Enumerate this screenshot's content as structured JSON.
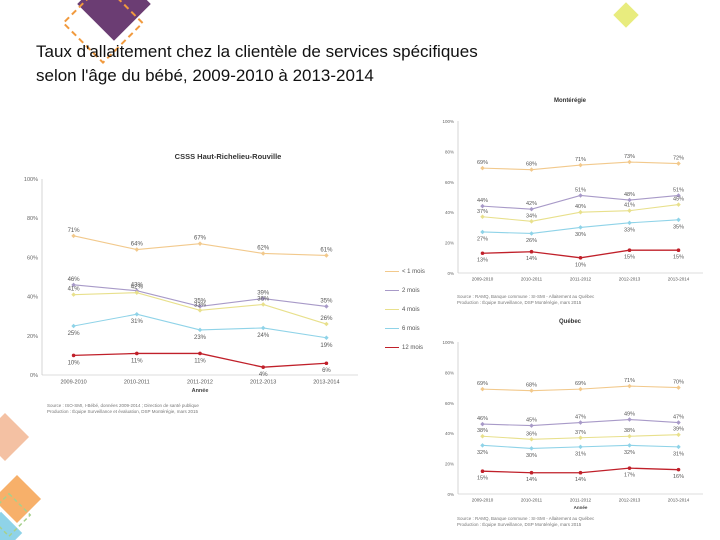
{
  "slide": {
    "title_line1": "Taux d'allaitement chez la clientèle de services spécifiques",
    "title_line2": "selon l'âge du bébé, 2009-2010 à 2013-2014"
  },
  "colors": {
    "accent_purple": "#6b3d73",
    "accent_orange": "#f19a3e",
    "accent_yellow": "#e8ec7e",
    "accent_pink": "#f4a3a8",
    "accent_blue": "#7ec8e3"
  },
  "legend": {
    "items": [
      {
        "label": "< 1 mois",
        "color": "#f2c98c"
      },
      {
        "label": "2 mois",
        "color": "#a89ac8"
      },
      {
        "label": "4 mois",
        "color": "#e8e08c"
      },
      {
        "label": "6 mois",
        "color": "#8fd3e8"
      },
      {
        "label": "12 mois",
        "color": "#c0202a"
      }
    ]
  },
  "sources": {
    "main": "Source : ISO-SMI, I-Bébé, données 2009-2014 ; Direction de santé publique\nProduction : Équipe Surveillance et évaluation, DSP Montérégie, mars 2015",
    "monteregie": "Source : RAMQ, Banque commune : SI-SMI - Allaitement au Québec\nProduction : Équipe Surveillance, DSP Montérégie, mars 2015",
    "quebec": "Source : RAMQ, Banque commune : SI-SMI - Allaitement au Québec\nProduction : Équipe Surveillance, DSP Montérégie, mars 2015"
  },
  "chart_data": [
    {
      "type": "line",
      "title": "CSSS Haut-Richelieu-Rouville",
      "xlabel": "Année",
      "ylabel": "",
      "categories": [
        "2009-2010",
        "2010-2011",
        "2011-2012",
        "2012-2013",
        "2013-2014"
      ],
      "y_ticks": [
        "0%",
        "20%",
        "40%",
        "60%",
        "80%",
        "100%"
      ],
      "ylim": [
        0,
        100
      ],
      "grid": false,
      "legend_position": "right",
      "series": [
        {
          "name": "< 1 mois",
          "color": "#f2c98c",
          "values": [
            71,
            64,
            67,
            62,
            61
          ],
          "labels": [
            "71%",
            "64%",
            "67%",
            "62%",
            "61%"
          ]
        },
        {
          "name": "2 mois",
          "color": "#a89ac8",
          "values": [
            46,
            43,
            35,
            39,
            35
          ],
          "labels": [
            "46%",
            "43%",
            "35%",
            "39%",
            "35%"
          ]
        },
        {
          "name": "4 mois",
          "color": "#e8e08c",
          "values": [
            41,
            42,
            33,
            36,
            26
          ],
          "labels": [
            "41%",
            "42%",
            "33%",
            "36%",
            "26%"
          ]
        },
        {
          "name": "6 mois",
          "color": "#8fd3e8",
          "values": [
            25,
            31,
            23,
            24,
            19
          ],
          "labels": [
            "25%",
            "31%",
            "23%",
            "24%",
            "19%"
          ]
        },
        {
          "name": "12 mois",
          "color": "#c0202a",
          "values": [
            10,
            11,
            11,
            4,
            6
          ],
          "labels": [
            "10%",
            "11%",
            "11%",
            "4%",
            "6%"
          ]
        }
      ]
    },
    {
      "type": "line",
      "title": "Montérégie",
      "xlabel": "",
      "ylabel": "",
      "categories": [
        "2009-2010",
        "2010-2011",
        "2011-2012",
        "2012-2013",
        "2013-2014"
      ],
      "y_ticks": [
        "0%",
        "20%",
        "40%",
        "60%",
        "80%",
        "100%"
      ],
      "ylim": [
        0,
        100
      ],
      "grid": false,
      "series": [
        {
          "name": "< 1 mois",
          "color": "#f2c98c",
          "values": [
            69,
            68,
            71,
            73,
            72
          ],
          "labels": [
            "69%",
            "68%",
            "71%",
            "73%",
            "72%"
          ]
        },
        {
          "name": "2 mois",
          "color": "#a89ac8",
          "values": [
            44,
            42,
            51,
            48,
            51
          ],
          "labels": [
            "44%",
            "42%",
            "51%",
            "48%",
            "51%"
          ]
        },
        {
          "name": "4 mois",
          "color": "#e8e08c",
          "values": [
            37,
            34,
            40,
            41,
            45
          ],
          "labels": [
            "37%",
            "34%",
            "40%",
            "41%",
            "45%"
          ]
        },
        {
          "name": "6 mois",
          "color": "#8fd3e8",
          "values": [
            27,
            26,
            30,
            33,
            35
          ],
          "labels": [
            "27%",
            "26%",
            "30%",
            "33%",
            "35%"
          ]
        },
        {
          "name": "12 mois",
          "color": "#c0202a",
          "values": [
            13,
            14,
            10,
            15,
            15
          ],
          "labels": [
            "13%",
            "14%",
            "10%",
            "15%",
            "15%"
          ]
        }
      ]
    },
    {
      "type": "line",
      "title": "Québec",
      "xlabel": "Année",
      "ylabel": "",
      "categories": [
        "2009-2010",
        "2010-2011",
        "2011-2012",
        "2012-2013",
        "2013-2014"
      ],
      "y_ticks": [
        "0%",
        "20%",
        "40%",
        "60%",
        "80%",
        "100%"
      ],
      "ylim": [
        0,
        100
      ],
      "grid": false,
      "series": [
        {
          "name": "< 1 mois",
          "color": "#f2c98c",
          "values": [
            69,
            68,
            69,
            71,
            70
          ],
          "labels": [
            "69%",
            "68%",
            "69%",
            "71%",
            "70%"
          ]
        },
        {
          "name": "2 mois",
          "color": "#a89ac8",
          "values": [
            46,
            45,
            47,
            49,
            47
          ],
          "labels": [
            "46%",
            "45%",
            "47%",
            "49%",
            "47%"
          ]
        },
        {
          "name": "4 mois",
          "color": "#e8e08c",
          "values": [
            38,
            36,
            37,
            38,
            39
          ],
          "labels": [
            "38%",
            "36%",
            "37%",
            "38%",
            "39%"
          ]
        },
        {
          "name": "6 mois",
          "color": "#8fd3e8",
          "values": [
            32,
            30,
            31,
            32,
            31
          ],
          "labels": [
            "32%",
            "30%",
            "31%",
            "32%",
            "31%"
          ]
        },
        {
          "name": "12 mois",
          "color": "#c0202a",
          "values": [
            15,
            14,
            14,
            17,
            16
          ],
          "labels": [
            "15%",
            "14%",
            "14%",
            "17%",
            "16%"
          ]
        }
      ]
    }
  ]
}
